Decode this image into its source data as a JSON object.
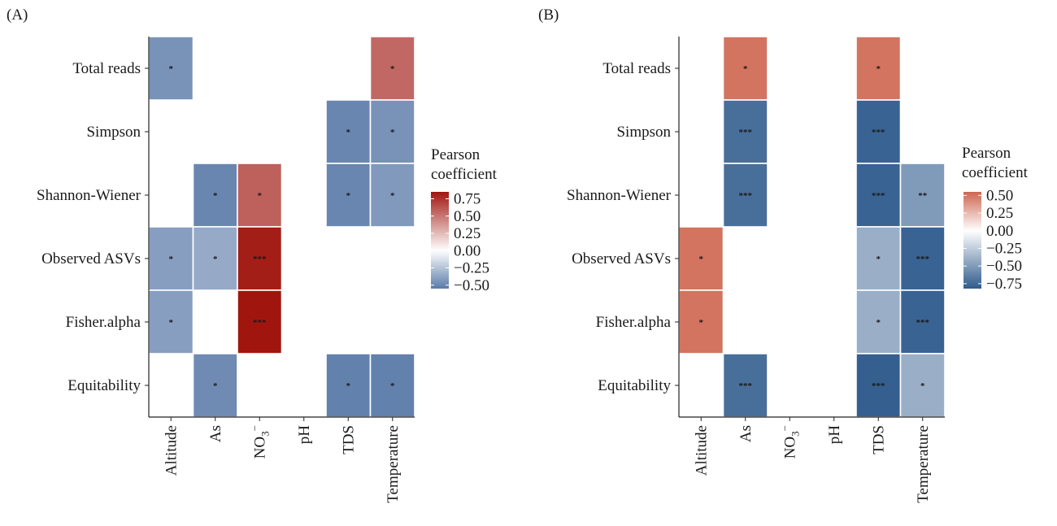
{
  "chart_data": [
    {
      "panel_label": "(A)",
      "type": "heatmap",
      "rows": [
        "Total reads",
        "Simpson",
        "Shannon-Wiener",
        "Observed ASVs",
        "Fisher.alpha",
        "Equitability"
      ],
      "columns": [
        "Altitude",
        "As",
        "NO3⁻",
        "pH",
        "TDS",
        "Temperature"
      ],
      "column_labels": [
        {
          "main": "Altitude",
          "sub": "",
          "sup": ""
        },
        {
          "main": "As",
          "sub": "",
          "sup": ""
        },
        {
          "main": "NO",
          "sub": "3",
          "sup": "−"
        },
        {
          "main": "pH",
          "sub": "",
          "sup": ""
        },
        {
          "main": "TDS",
          "sub": "",
          "sup": ""
        },
        {
          "main": "Temperature",
          "sub": "",
          "sup": ""
        }
      ],
      "values": [
        [
          -0.45,
          null,
          null,
          null,
          null,
          0.55
        ],
        [
          null,
          null,
          null,
          null,
          -0.5,
          -0.45
        ],
        [
          null,
          -0.5,
          0.58,
          null,
          -0.5,
          -0.42
        ],
        [
          -0.4,
          -0.35,
          0.82,
          null,
          null,
          null
        ],
        [
          -0.4,
          null,
          0.85,
          null,
          null,
          null
        ],
        [
          null,
          -0.48,
          null,
          null,
          -0.52,
          -0.52
        ]
      ],
      "significance": [
        [
          "*",
          "",
          "",
          "",
          "",
          "*"
        ],
        [
          "",
          "",
          "",
          "",
          "*",
          "*"
        ],
        [
          "",
          "*",
          "*",
          "",
          "*",
          "*"
        ],
        [
          "*",
          "*",
          "***",
          "",
          "",
          ""
        ],
        [
          "*",
          "",
          "***",
          "",
          "",
          ""
        ],
        [
          "",
          "*",
          "",
          "",
          "*",
          "*"
        ]
      ],
      "legend": {
        "title": [
          "Pearson",
          "coefficient"
        ],
        "ticks": [
          0.75,
          0.5,
          0.25,
          0.0,
          -0.25,
          -0.5
        ],
        "tick_labels": [
          "0.75",
          "0.50",
          "0.25",
          "0.00",
          "−0.25",
          "−0.50"
        ],
        "range": [
          -0.55,
          0.85
        ],
        "colors": {
          "low": "#5a7aa8",
          "mid": "#ffffff",
          "high": "#a0160f"
        },
        "placement": "right"
      }
    },
    {
      "panel_label": "(B)",
      "type": "heatmap",
      "rows": [
        "Total reads",
        "Simpson",
        "Shannon-Wiener",
        "Observed ASVs",
        "Fisher.alpha",
        "Equitability"
      ],
      "columns": [
        "Altitude",
        "As",
        "NO3⁻",
        "pH",
        "TDS",
        "Temperature"
      ],
      "column_labels": [
        {
          "main": "Altitude",
          "sub": "",
          "sup": ""
        },
        {
          "main": "As",
          "sub": "",
          "sup": ""
        },
        {
          "main": "NO",
          "sub": "3",
          "sup": "−"
        },
        {
          "main": "pH",
          "sub": "",
          "sup": ""
        },
        {
          "main": "TDS",
          "sub": "",
          "sup": ""
        },
        {
          "main": "Temperature",
          "sub": "",
          "sup": ""
        }
      ],
      "values": [
        [
          null,
          0.5,
          null,
          null,
          0.5,
          null
        ],
        [
          null,
          -0.72,
          null,
          null,
          -0.78,
          null
        ],
        [
          null,
          -0.72,
          null,
          null,
          -0.78,
          -0.5
        ],
        [
          0.5,
          null,
          null,
          null,
          -0.4,
          -0.78
        ],
        [
          0.5,
          null,
          null,
          null,
          -0.4,
          -0.78
        ],
        [
          null,
          -0.72,
          null,
          null,
          -0.8,
          -0.4
        ]
      ],
      "significance": [
        [
          "",
          "*",
          "",
          "",
          "*",
          ""
        ],
        [
          "",
          "***",
          "",
          "",
          "***",
          ""
        ],
        [
          "",
          "***",
          "",
          "",
          "***",
          "**"
        ],
        [
          "*",
          "",
          "",
          "",
          "*",
          "***"
        ],
        [
          "*",
          "",
          "",
          "",
          "*",
          "***"
        ],
        [
          "",
          "***",
          "",
          "",
          "***",
          "*"
        ]
      ],
      "legend": {
        "title": [
          "Pearson",
          "coefficient"
        ],
        "ticks": [
          0.5,
          0.25,
          0.0,
          -0.25,
          -0.5,
          -0.75
        ],
        "tick_labels": [
          "0.50",
          "0.25",
          "0.00",
          "−0.25",
          "−0.50",
          "−0.75"
        ],
        "range": [
          -0.82,
          0.55
        ],
        "colors": {
          "low": "#2f5b8c",
          "mid": "#ffffff",
          "high": "#cd6650"
        },
        "placement": "right"
      }
    }
  ]
}
